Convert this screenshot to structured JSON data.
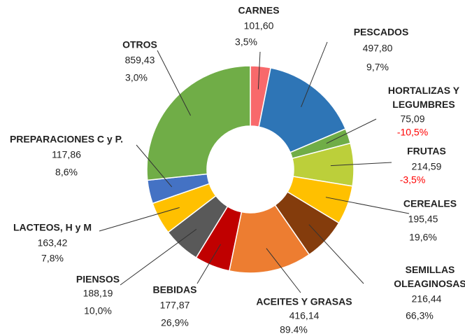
{
  "chart_data": {
    "type": "donut",
    "categories": [
      "CARNES",
      "PESCADOS",
      "HORTALIZAS Y LEGUMBRES",
      "FRUTAS",
      "CEREALES",
      "SEMILLAS OLEAGINOSAS",
      "ACEITES Y GRASAS",
      "BEBIDAS",
      "PIENSOS",
      "LACTEOS, H y M",
      "PREPARACIONES C y P.",
      "OTROS"
    ],
    "values": [
      101.6,
      497.8,
      75.09,
      214.59,
      195.45,
      216.44,
      416.14,
      177.87,
      188.19,
      163.42,
      117.86,
      859.43
    ],
    "value_labels": [
      "101,60",
      "497,80",
      "75,09",
      "214,59",
      "195,45",
      "216,44",
      "416,14",
      "177,87",
      "188,19",
      "163,42",
      "117,86",
      "859,43"
    ],
    "change_labels": [
      "3,5%",
      "9,7%",
      "-10,5%",
      "-3,5%",
      "19,6%",
      "66,3%",
      "89.4%",
      "26,9%",
      "10,0%",
      "7,8%",
      "8,6%",
      "3,0%"
    ],
    "colors": [
      "#f8696b",
      "#2e75b6",
      "#70ad47",
      "#bccf3a",
      "#ffc000",
      "#843c0c",
      "#ed7d31",
      "#c00000",
      "#595959",
      "#ffc000",
      "#4472c4",
      "#70ad47"
    ]
  }
}
